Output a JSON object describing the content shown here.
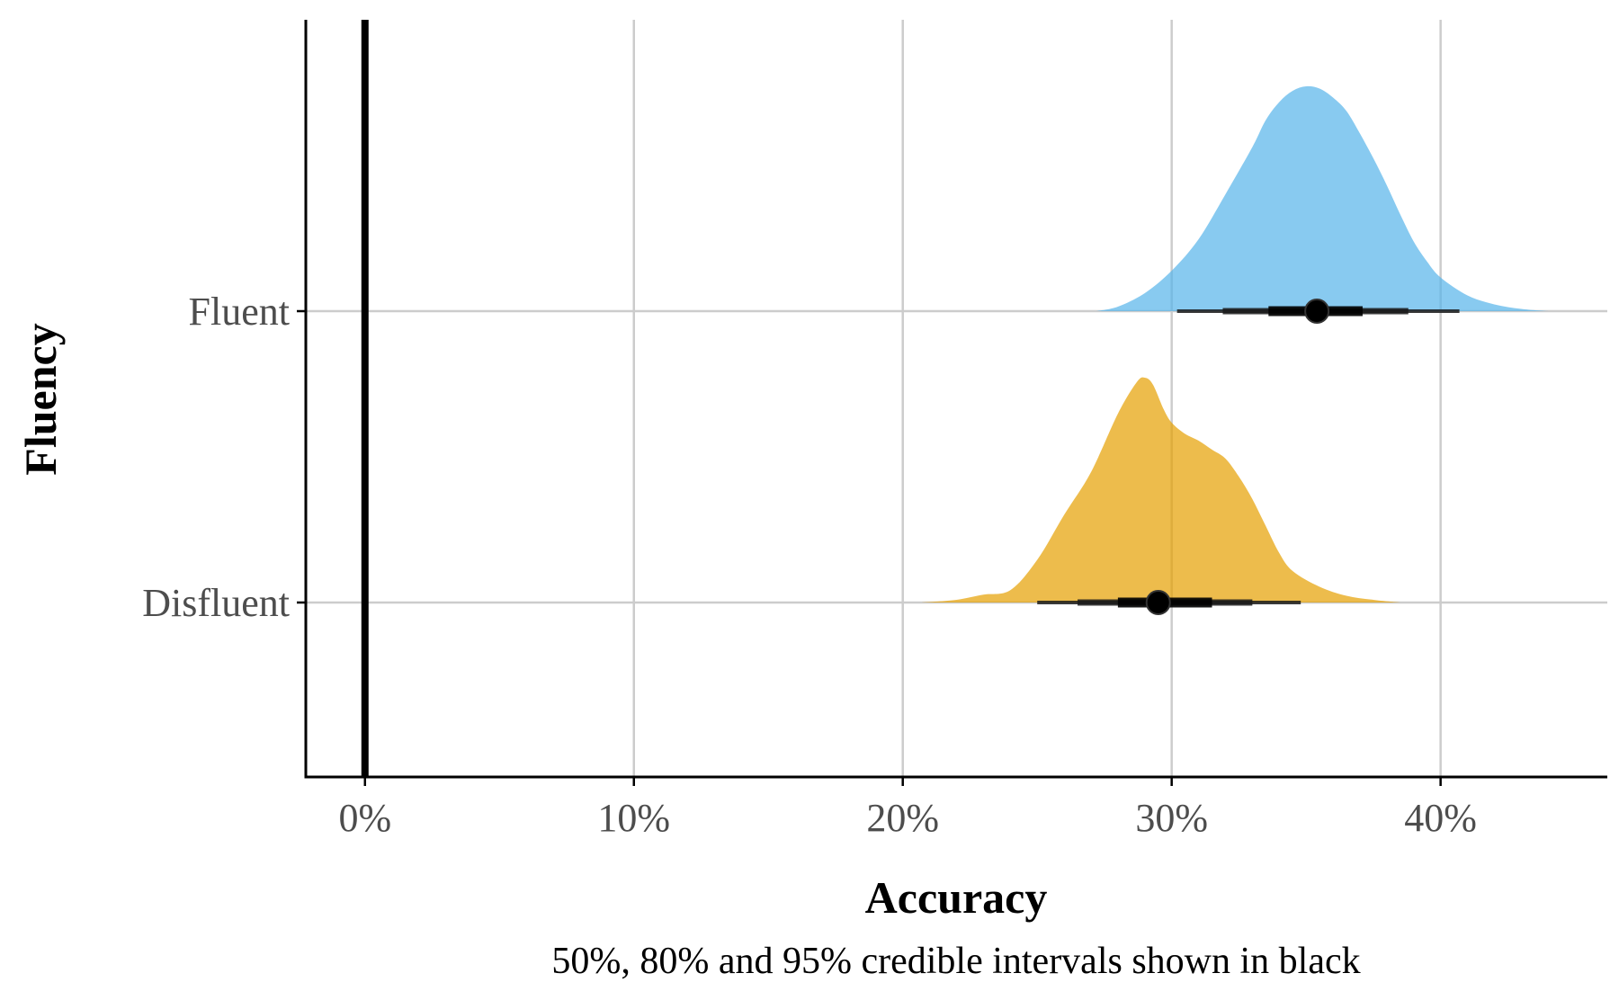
{
  "chart_data": {
    "type": "density-ridge",
    "xlabel": "Accuracy",
    "ylabel": "Fluency",
    "caption": "50%, 80% and 95% credible intervals shown in black",
    "x_ticks": [
      0,
      10,
      20,
      30,
      40
    ],
    "x_tick_labels": [
      "0%",
      "10%",
      "20%",
      "30%",
      "40%"
    ],
    "xlim": [
      -2.2,
      46.2
    ],
    "reference_line_x": 0,
    "grid": true,
    "legend": "none",
    "categories": [
      "Disfluent",
      "Fluent"
    ],
    "series": [
      {
        "name": "Disfluent",
        "color": "#E69F00",
        "median": 29.5,
        "interval_50": [
          28.0,
          31.5
        ],
        "interval_80": [
          26.5,
          33.0
        ],
        "interval_95": [
          25.0,
          34.8
        ],
        "density": {
          "x": [
            20.7,
            22.0,
            23.0,
            24.0,
            25.0,
            26.0,
            27.0,
            28.0,
            28.7,
            29.0,
            29.3,
            29.7,
            30.0,
            30.5,
            31.0,
            31.5,
            32.0,
            32.5,
            33.0,
            33.5,
            34.0,
            34.5,
            35.5,
            36.5,
            37.5,
            38.5
          ],
          "y": [
            0.0,
            0.012,
            0.035,
            0.055,
            0.19,
            0.39,
            0.58,
            0.84,
            0.98,
            1.0,
            0.97,
            0.86,
            0.8,
            0.75,
            0.72,
            0.68,
            0.64,
            0.56,
            0.46,
            0.34,
            0.22,
            0.14,
            0.07,
            0.03,
            0.012,
            0.0
          ]
        }
      },
      {
        "name": "Fluent",
        "color": "#56B4E9",
        "median": 35.4,
        "interval_50": [
          33.6,
          37.1
        ],
        "interval_80": [
          31.9,
          38.8
        ],
        "interval_95": [
          30.2,
          40.7
        ],
        "density": {
          "x": [
            27.2,
            28.0,
            29.0,
            30.0,
            31.0,
            32.0,
            33.0,
            33.5,
            34.0,
            34.5,
            35.0,
            35.5,
            36.0,
            36.5,
            37.0,
            37.5,
            38.0,
            38.5,
            39.0,
            39.5,
            40.0,
            41.0,
            42.0,
            43.0,
            44.0
          ],
          "y": [
            0.0,
            0.02,
            0.08,
            0.18,
            0.32,
            0.52,
            0.73,
            0.85,
            0.93,
            0.98,
            1.0,
            0.99,
            0.95,
            0.89,
            0.79,
            0.68,
            0.56,
            0.43,
            0.31,
            0.22,
            0.15,
            0.07,
            0.03,
            0.01,
            0.0
          ]
        }
      }
    ]
  }
}
